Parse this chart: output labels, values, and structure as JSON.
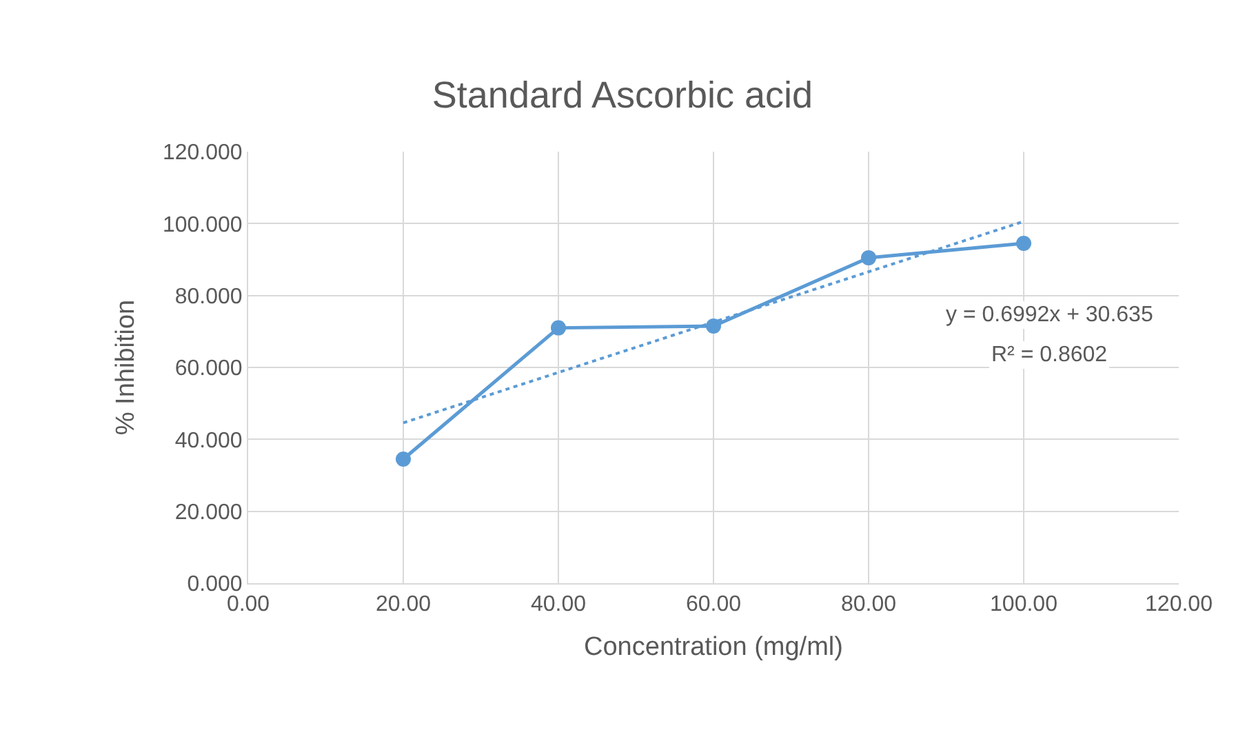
{
  "chart_data": {
    "type": "line",
    "title": "Standard Ascorbic acid",
    "xlabel": "Concentration (mg/ml)",
    "ylabel": "% Inhibition",
    "x": [
      20,
      40,
      60,
      80,
      100
    ],
    "series": [
      {
        "color": "#5b9bd5",
        "values": [
          34.5,
          71.0,
          71.5,
          90.5,
          94.5
        ]
      },
      {
        "type": "line",
        "color": "#5b9bd5",
        "x": [
          20,
          100
        ],
        "values": [
          44.6,
          100.6
        ],
        "line_style": "dotted",
        "marker": "none"
      }
    ],
    "xlim": [
      0,
      120
    ],
    "xticks": [
      {
        "value": 0,
        "label": "0.00"
      },
      {
        "value": 20,
        "label": "20.00"
      },
      {
        "value": 40,
        "label": "40.00"
      },
      {
        "value": 60,
        "label": "60.00"
      },
      {
        "value": 80,
        "label": "80.00"
      },
      {
        "value": 100,
        "label": "100.00"
      },
      {
        "value": 120,
        "label": "120.00"
      }
    ],
    "ylim": [
      0,
      120
    ],
    "yticks": [
      {
        "value": 0,
        "label": "0.000"
      },
      {
        "value": 20,
        "label": "20.000"
      },
      {
        "value": 40,
        "label": "40.000"
      },
      {
        "value": 60,
        "label": "60.000"
      },
      {
        "value": 80,
        "label": "80.000"
      },
      {
        "value": 100,
        "label": "100.000"
      },
      {
        "value": 120,
        "label": "120.000"
      }
    ],
    "annotations": [
      "y = 0.6992x + 30.635",
      "R² = 0.8602"
    ],
    "grid": true,
    "marker": "circle",
    "line_style": "solid"
  }
}
